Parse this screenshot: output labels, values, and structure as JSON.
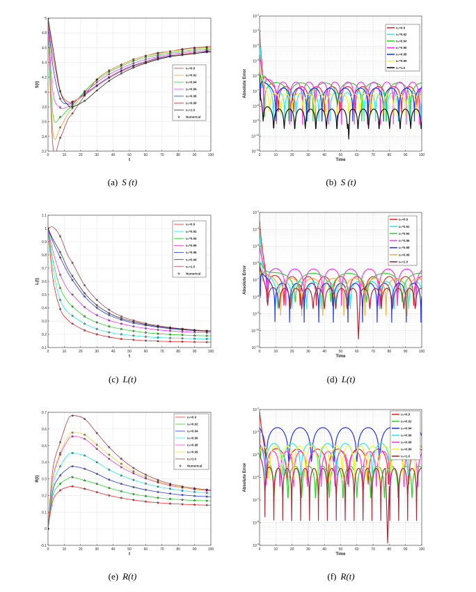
{
  "chart_data": [
    {
      "id": "a",
      "type": "line",
      "ylabel": "S(t)",
      "xlabel": "t",
      "xlim": [
        0,
        100
      ],
      "ylim": [
        3.2,
        5
      ],
      "xticks": [
        0,
        10,
        20,
        30,
        40,
        50,
        60,
        70,
        80,
        90,
        100
      ],
      "yticks": [
        3.2,
        3.4,
        3.6,
        3.8,
        4,
        4.2,
        4.4,
        4.6,
        4.8,
        5
      ],
      "grid": true,
      "legend": "right",
      "x": [
        0,
        3,
        7.5,
        12,
        15,
        22.5,
        30,
        37.5,
        45,
        52.5,
        60,
        67.5,
        75,
        82.5,
        90,
        97.5,
        100
      ],
      "series": [
        {
          "name": "υ₁=0.9",
          "color": "#a8424e",
          "values": [
            5,
            3.27,
            3.38,
            3.62,
            3.71,
            3.95,
            4.17,
            4.29,
            4.37,
            4.44,
            4.49,
            4.53,
            4.55,
            4.58,
            4.6,
            4.61,
            4.62
          ]
        },
        {
          "name": "υ₁=0.92",
          "color": "#f0a030",
          "values": [
            5,
            3.46,
            3.52,
            3.7,
            3.78,
            4.0,
            4.17,
            4.29,
            4.37,
            4.44,
            4.49,
            4.52,
            4.55,
            4.57,
            4.59,
            4.6,
            4.6
          ]
        },
        {
          "name": "υ₁=0.94",
          "color": "#22dd22",
          "values": [
            5,
            3.7,
            3.66,
            3.76,
            3.82,
            4.01,
            4.16,
            4.27,
            4.35,
            4.42,
            4.47,
            4.5,
            4.53,
            4.55,
            4.57,
            4.58,
            4.58
          ]
        },
        {
          "name": "υ₁=0.96",
          "color": "#ff33ff",
          "values": [
            5,
            4.0,
            3.79,
            3.8,
            3.84,
            3.99,
            4.13,
            4.24,
            4.32,
            4.39,
            4.44,
            4.48,
            4.51,
            4.53,
            4.55,
            4.56,
            4.57
          ]
        },
        {
          "name": "υ₁=0.98",
          "color": "#2233ee",
          "values": [
            5,
            4.35,
            3.91,
            3.84,
            3.86,
            3.97,
            4.09,
            4.2,
            4.29,
            4.36,
            4.41,
            4.46,
            4.49,
            4.51,
            4.53,
            4.55,
            4.55
          ]
        },
        {
          "name": "υ₁=0.99",
          "color": "#f08080",
          "values": [
            5,
            4.5,
            4.01,
            3.87,
            3.87,
            3.96,
            4.08,
            4.19,
            4.28,
            4.35,
            4.4,
            4.45,
            4.48,
            4.51,
            4.53,
            4.54,
            4.55
          ]
        },
        {
          "name": "υ₁=1.0",
          "color": "#222222",
          "values": [
            5,
            4.6,
            4.01,
            3.83,
            3.8,
            3.88,
            4.02,
            4.15,
            4.25,
            4.33,
            4.39,
            4.44,
            4.48,
            4.5,
            4.52,
            4.54,
            4.54
          ]
        }
      ],
      "numerical_label": "Numerical",
      "caption": {
        "label": "(a)",
        "var": "S (t)"
      }
    },
    {
      "id": "b",
      "type": "line",
      "yscale": "log",
      "ylabel": "Absolute Error",
      "xlabel": "Time",
      "xlim": [
        0,
        100
      ],
      "ylim_log10": [
        -11,
        -2
      ],
      "xticks": [
        0,
        10,
        20,
        30,
        40,
        50,
        60,
        70,
        80,
        90,
        100
      ],
      "yticks_log10": [
        -11,
        -10,
        -9,
        -8,
        -7,
        -6,
        -5,
        -4,
        -3,
        -2
      ],
      "grid": true,
      "legend": "top-right",
      "series": [
        {
          "name": "υ₁=0.9",
          "color": "#ff2020",
          "initial_log10": -2.8,
          "peak_log10": -6.7,
          "dip_log10": -8.4,
          "period": 9.5,
          "phase": 2
        },
        {
          "name": "υ₁=0.92",
          "color": "#22eeee",
          "initial_log10": -3.0,
          "peak_log10": -7.1,
          "dip_log10": -9.0,
          "period": 7,
          "phase": 1.5
        },
        {
          "name": "υ₁=0.94",
          "color": "#22dd22",
          "initial_log10": -5.5,
          "peak_log10": -6.45,
          "dip_log10": -9.0,
          "period": 15,
          "phase": 3
        },
        {
          "name": "υ₁=0.96",
          "color": "#ff33ff",
          "initial_log10": -4.5,
          "peak_log10": -6.4,
          "dip_log10": -9.2,
          "period": 8,
          "phase": 2.5
        },
        {
          "name": "υ₁=0.98",
          "color": "#2233ee",
          "initial_log10": -5.1,
          "peak_log10": -6.8,
          "dip_log10": -9.0,
          "period": 9.5,
          "phase": 0.5
        },
        {
          "name": "υ₁=0.99",
          "color": "#f5f522",
          "initial_log10": -5.0,
          "peak_log10": -7.2,
          "dip_log10": -8.6,
          "period": 7,
          "phase": 6
        },
        {
          "name": "υ₁=1.0",
          "color": "#111111",
          "initial_log10": -7.0,
          "peak_log10": -8.2,
          "dip_log10": -9.5,
          "period": 6.5,
          "phase": 2.2,
          "deep_dip": {
            "t": 55,
            "log10": -10.2
          }
        }
      ],
      "caption": {
        "label": "(b)",
        "var": "S (t)"
      }
    },
    {
      "id": "c",
      "type": "line",
      "ylabel": "L(t)",
      "xlabel": "t",
      "xlim": [
        0,
        100
      ],
      "ylim": [
        0.1,
        1.1
      ],
      "xticks": [
        0,
        10,
        20,
        30,
        40,
        50,
        60,
        70,
        80,
        90,
        100
      ],
      "yticks": [
        0.1,
        0.2,
        0.3,
        0.4,
        0.5,
        0.6,
        0.7,
        0.8,
        0.9,
        1,
        1.1
      ],
      "grid": true,
      "legend": "top-right",
      "x": [
        0,
        3,
        7.5,
        12,
        15,
        22.5,
        30,
        37.5,
        45,
        52.5,
        60,
        67.5,
        75,
        82.5,
        90,
        97.5,
        100
      ],
      "series": [
        {
          "name": "υ₁=0.9",
          "color": "#ff2020",
          "values": [
            1,
            0.62,
            0.39,
            0.31,
            0.28,
            0.23,
            0.2,
            0.18,
            0.165,
            0.158,
            0.152,
            0.148,
            0.146,
            0.144,
            0.142,
            0.141,
            0.141
          ]
        },
        {
          "name": "υ₁=0.92",
          "color": "#22eeee",
          "values": [
            1,
            0.7,
            0.46,
            0.37,
            0.34,
            0.28,
            0.24,
            0.215,
            0.2,
            0.19,
            0.182,
            0.176,
            0.172,
            0.169,
            0.167,
            0.165,
            0.165
          ]
        },
        {
          "name": "υ₁=0.94",
          "color": "#22dd22",
          "values": [
            1,
            0.76,
            0.55,
            0.45,
            0.41,
            0.335,
            0.29,
            0.26,
            0.24,
            0.225,
            0.213,
            0.205,
            0.199,
            0.195,
            0.191,
            0.189,
            0.189
          ]
        },
        {
          "name": "υ₁=0.96",
          "color": "#ff33ff",
          "values": [
            1,
            0.83,
            0.65,
            0.54,
            0.5,
            0.405,
            0.345,
            0.305,
            0.28,
            0.26,
            0.245,
            0.234,
            0.226,
            0.22,
            0.215,
            0.212,
            0.211
          ]
        },
        {
          "name": "υ₁=0.98",
          "color": "#2233ee",
          "values": [
            1,
            0.9,
            0.78,
            0.67,
            0.61,
            0.485,
            0.4,
            0.345,
            0.31,
            0.285,
            0.268,
            0.254,
            0.243,
            0.235,
            0.228,
            0.223,
            0.222
          ]
        },
        {
          "name": "υ₁=0.99",
          "color": "#333333",
          "values": [
            1,
            0.92,
            0.82,
            0.7,
            0.64,
            0.51,
            0.42,
            0.36,
            0.32,
            0.295,
            0.275,
            0.26,
            0.248,
            0.238,
            0.23,
            0.225,
            0.224
          ]
        },
        {
          "name": "υ₁=1.0",
          "color": "#b03a48",
          "values": [
            1,
            1.01,
            0.94,
            0.8,
            0.74,
            0.57,
            0.46,
            0.385,
            0.335,
            0.305,
            0.282,
            0.265,
            0.252,
            0.242,
            0.233,
            0.227,
            0.226
          ]
        }
      ],
      "numerical_label": "Numerical",
      "caption": {
        "label": "(c)",
        "var": "L(t)"
      }
    },
    {
      "id": "d",
      "type": "line",
      "yscale": "log",
      "ylabel": "Absolute Error",
      "xlabel": "Time",
      "xlim": [
        0,
        100
      ],
      "ylim_log10": [
        -11,
        -3
      ],
      "xticks": [
        0,
        10,
        20,
        30,
        40,
        50,
        60,
        70,
        80,
        90,
        100
      ],
      "yticks_log10": [
        -11,
        -10,
        -9,
        -8,
        -7,
        -6,
        -5,
        -4,
        -3
      ],
      "grid": true,
      "legend": "top-right",
      "series": [
        {
          "name": "υ₁=0.9",
          "color": "#ff2020",
          "initial_log10": -3.5,
          "peak_log10": -6.8,
          "dip_log10": -8.5,
          "period": 10,
          "phase": 5
        },
        {
          "name": "υ₁=0.92",
          "color": "#22eeee",
          "initial_log10": -3.5,
          "peak_log10": -7.1,
          "dip_log10": -8.7,
          "period": 9,
          "phase": 2
        },
        {
          "name": "υ₁=0.94",
          "color": "#22dd22",
          "initial_log10": -4.5,
          "peak_log10": -6.6,
          "dip_log10": -8.3,
          "period": 22,
          "phase": 0
        },
        {
          "name": "υ₁=0.96",
          "color": "#ff33ff",
          "initial_log10": -5.0,
          "peak_log10": -6.35,
          "dip_log10": -8.5,
          "period": 11.5,
          "phase": 4.5
        },
        {
          "name": "υ₁=0.98",
          "color": "#2233ee",
          "initial_log10": -5.3,
          "peak_log10": -7.2,
          "dip_log10": -9.5,
          "period": 9,
          "phase": 0.5
        },
        {
          "name": "υ₁=0.99",
          "color": "#f0b030",
          "initial_log10": -5.3,
          "peak_log10": -6.9,
          "dip_log10": -9.1,
          "period": 13,
          "phase": 0
        },
        {
          "name": "υ₁=1.0",
          "color": "#a82a3a",
          "initial_log10": -6.0,
          "peak_log10": -7.5,
          "dip_log10": -8.7,
          "period": 7,
          "phase": 5,
          "deep_dip": {
            "t": 61,
            "log10": -10.5
          }
        }
      ],
      "caption": {
        "label": "(d)",
        "var": "L(t)"
      }
    },
    {
      "id": "e",
      "type": "line",
      "ylabel": "R(t)",
      "xlabel": "t",
      "xlim": [
        0,
        100
      ],
      "ylim": [
        -0.1,
        0.7
      ],
      "xticks": [
        0,
        10,
        20,
        30,
        40,
        50,
        60,
        70,
        80,
        90,
        100
      ],
      "yticks": [
        -0.1,
        0,
        0.1,
        0.2,
        0.3,
        0.4,
        0.5,
        0.6,
        0.7
      ],
      "grid": true,
      "legend": "top-right",
      "x": [
        0,
        3,
        7.5,
        12,
        15,
        22.5,
        30,
        37.5,
        45,
        52.5,
        60,
        67.5,
        75,
        82.5,
        90,
        97.5,
        100
      ],
      "series": [
        {
          "name": "υ₁=0.9",
          "color": "#ff2020",
          "values": [
            0,
            0.17,
            0.23,
            0.25,
            0.255,
            0.24,
            0.22,
            0.2,
            0.185,
            0.173,
            0.163,
            0.156,
            0.151,
            0.147,
            0.144,
            0.142,
            0.142
          ]
        },
        {
          "name": "υ₁=0.92",
          "color": "#22dd22",
          "values": [
            0,
            0.2,
            0.27,
            0.3,
            0.31,
            0.29,
            0.27,
            0.245,
            0.225,
            0.208,
            0.196,
            0.186,
            0.179,
            0.174,
            0.17,
            0.168,
            0.167
          ]
        },
        {
          "name": "υ₁=0.94",
          "color": "#2233ee",
          "values": [
            0,
            0.23,
            0.32,
            0.36,
            0.375,
            0.36,
            0.33,
            0.295,
            0.27,
            0.25,
            0.234,
            0.221,
            0.211,
            0.203,
            0.197,
            0.193,
            0.192
          ]
        },
        {
          "name": "υ₁=0.96",
          "color": "#22eeee",
          "values": [
            0,
            0.26,
            0.375,
            0.44,
            0.455,
            0.44,
            0.4,
            0.355,
            0.32,
            0.293,
            0.271,
            0.253,
            0.24,
            0.229,
            0.221,
            0.215,
            0.213
          ]
        },
        {
          "name": "υ₁=0.98",
          "color": "#ff33ff",
          "values": [
            0,
            0.3,
            0.445,
            0.53,
            0.555,
            0.54,
            0.48,
            0.42,
            0.37,
            0.333,
            0.302,
            0.278,
            0.26,
            0.247,
            0.237,
            0.23,
            0.228
          ]
        },
        {
          "name": "υ₁=0.99",
          "color": "#f5d522",
          "values": [
            0,
            0.31,
            0.455,
            0.55,
            0.578,
            0.565,
            0.505,
            0.445,
            0.39,
            0.345,
            0.31,
            0.283,
            0.263,
            0.249,
            0.239,
            0.232,
            0.23
          ]
        },
        {
          "name": "υ₁=1.0",
          "color": "#b03a48",
          "values": [
            0,
            0.36,
            0.52,
            0.65,
            0.68,
            0.66,
            0.575,
            0.49,
            0.42,
            0.365,
            0.325,
            0.293,
            0.27,
            0.254,
            0.243,
            0.235,
            0.233
          ]
        }
      ],
      "numerical_label": "Numerical",
      "caption": {
        "label": "(e)",
        "var": "R(t)"
      }
    },
    {
      "id": "f",
      "type": "line",
      "yscale": "log",
      "ylabel": "Absolute Error",
      "xlabel": "Time",
      "xlim": [
        0,
        100
      ],
      "ylim_log10": [
        -9,
        -3
      ],
      "xticks": [
        0,
        10,
        20,
        30,
        40,
        50,
        60,
        70,
        80,
        90,
        100
      ],
      "yticks_log10": [
        -9,
        -8,
        -7,
        -6,
        -5,
        -4,
        -3
      ],
      "grid": true,
      "legend": "top-right",
      "series": [
        {
          "name": "υ₁=0.9",
          "color": "#ff2020",
          "initial_log10": -3.05,
          "peak_log10": -4.75,
          "dip_log10": -6.3,
          "period": 12.5,
          "phase": 4.5
        },
        {
          "name": "υ₁=0.92",
          "color": "#22dd22",
          "initial_log10": -3.2,
          "peak_log10": -5.5,
          "dip_log10": -6.9,
          "period": 8.5,
          "phase": 0.5
        },
        {
          "name": "υ₁=0.94",
          "color": "#2233ee",
          "initial_log10": -3.7,
          "peak_log10": -3.8,
          "dip_log10": -5.3,
          "period": 14,
          "phase": 4
        },
        {
          "name": "υ₁=0.96",
          "color": "#22eeee",
          "initial_log10": -4.5,
          "peak_log10": -4.5,
          "dip_log10": -5.9,
          "period": 11,
          "phase": 3.5
        },
        {
          "name": "υ₁=0.98",
          "color": "#ff33ff",
          "initial_log10": -4.5,
          "peak_log10": -4.85,
          "dip_log10": -6.4,
          "period": 8.5,
          "phase": 4
        },
        {
          "name": "υ₁=0.99",
          "color": "#f5f522",
          "initial_log10": -4.7,
          "peak_log10": -4.6,
          "dip_log10": -6.1,
          "period": 7.5,
          "phase": 6
        },
        {
          "name": "υ₁=1.0",
          "color": "#a82a3a",
          "initial_log10": -5.0,
          "peak_log10": -5.6,
          "dip_log10": -7.9,
          "period": 5.5,
          "phase": 3.3,
          "deep_dip": {
            "t": 79,
            "log10": -8.9
          }
        }
      ],
      "caption": {
        "label": "(f)",
        "var": "R(t)"
      }
    }
  ]
}
